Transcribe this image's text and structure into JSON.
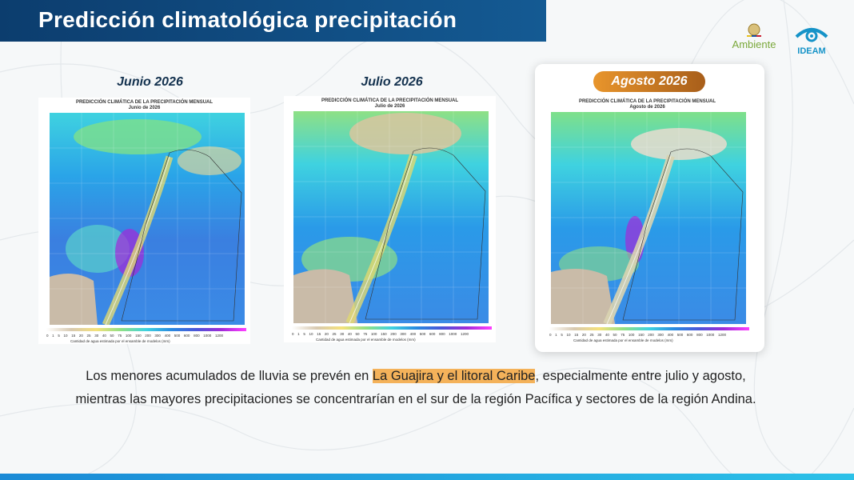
{
  "slide": {
    "title": "Predicción climatológica precipitación"
  },
  "logos": {
    "ambiente": "Ambiente",
    "ideam": "IDEAM"
  },
  "panels": [
    {
      "label": "Junio 2026",
      "map_title": "PREDICCIÓN CLIMÁTICA DE LA PRECIPITACIÓN MENSUAL",
      "map_subtitle": "Junio de 2026",
      "legend_caption": "Cantidad de agua estimada por el ensamble de modelos (mm)",
      "highlighted": false
    },
    {
      "label": "Julio 2026",
      "map_title": "PREDICCIÓN CLIMÁTICA DE LA PRECIPITACIÓN MENSUAL",
      "map_subtitle": "Julio de 2026",
      "legend_caption": "Cantidad de agua estimada por el ensamble de modelos (mm)",
      "highlighted": false
    },
    {
      "label": "Agosto 2026",
      "map_title": "PREDICCIÓN CLIMÁTICA DE LA PRECIPITACIÓN MENSUAL",
      "map_subtitle": "Agosto de 2026",
      "legend_caption": "Cantidad de agua estimada por el ensamble de modelos (mm)",
      "highlighted": true
    }
  ],
  "legend_ticks": [
    "0",
    "1",
    "5",
    "10",
    "15",
    "20",
    "25",
    "30",
    "40",
    "50",
    "75",
    "100",
    "150",
    "200",
    "300",
    "400",
    "500",
    "600",
    "800",
    "1000",
    "1200"
  ],
  "colors": {
    "accent": "#e8952c",
    "title_bar": "#0c3d6e",
    "highlight": "#f4b25a"
  },
  "body": {
    "line1_before": "Los menores acumulados de lluvia se prevén en ",
    "line1_highlight": "La Guajira y el litoral Caribe",
    "line1_after": ", especialmente entre julio y agosto,",
    "line2": "mientras las mayores precipitaciones se concentrarían en el sur de la región Pacífica y sectores de la región Andina."
  }
}
